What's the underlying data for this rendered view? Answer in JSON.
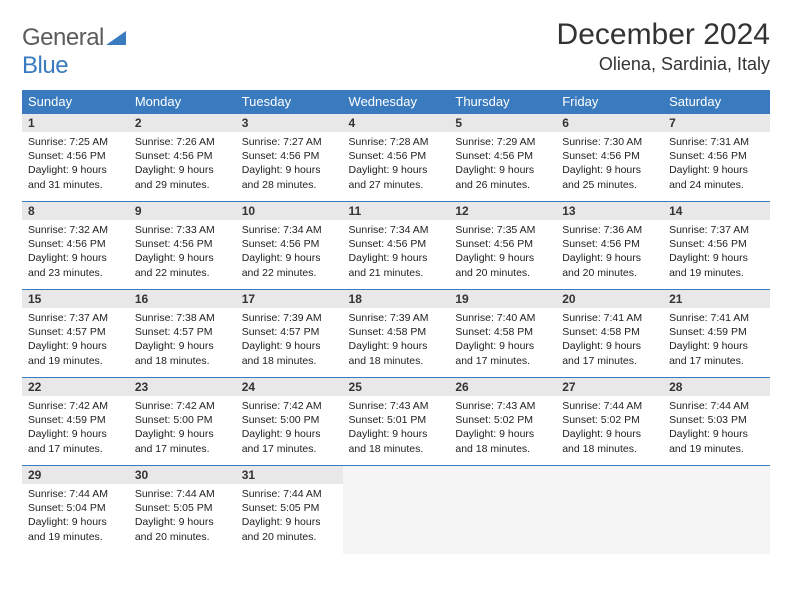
{
  "logo": {
    "general": "General",
    "blue": "Blue"
  },
  "title": "December 2024",
  "location": "Oliena, Sardinia, Italy",
  "colors": {
    "header_bg": "#3a7bbf",
    "header_text": "#ffffff",
    "daynum_bg": "#e8e8e8",
    "row_border": "#3a7bbf",
    "logo_gray": "#5b5b5b",
    "logo_blue": "#3a7bbf",
    "text": "#222222",
    "page_bg": "#ffffff"
  },
  "weekdays": [
    "Sunday",
    "Monday",
    "Tuesday",
    "Wednesday",
    "Thursday",
    "Friday",
    "Saturday"
  ],
  "days": [
    {
      "n": 1,
      "sr": "7:25 AM",
      "ss": "4:56 PM",
      "dl": "9 hours and 31 minutes."
    },
    {
      "n": 2,
      "sr": "7:26 AM",
      "ss": "4:56 PM",
      "dl": "9 hours and 29 minutes."
    },
    {
      "n": 3,
      "sr": "7:27 AM",
      "ss": "4:56 PM",
      "dl": "9 hours and 28 minutes."
    },
    {
      "n": 4,
      "sr": "7:28 AM",
      "ss": "4:56 PM",
      "dl": "9 hours and 27 minutes."
    },
    {
      "n": 5,
      "sr": "7:29 AM",
      "ss": "4:56 PM",
      "dl": "9 hours and 26 minutes."
    },
    {
      "n": 6,
      "sr": "7:30 AM",
      "ss": "4:56 PM",
      "dl": "9 hours and 25 minutes."
    },
    {
      "n": 7,
      "sr": "7:31 AM",
      "ss": "4:56 PM",
      "dl": "9 hours and 24 minutes."
    },
    {
      "n": 8,
      "sr": "7:32 AM",
      "ss": "4:56 PM",
      "dl": "9 hours and 23 minutes."
    },
    {
      "n": 9,
      "sr": "7:33 AM",
      "ss": "4:56 PM",
      "dl": "9 hours and 22 minutes."
    },
    {
      "n": 10,
      "sr": "7:34 AM",
      "ss": "4:56 PM",
      "dl": "9 hours and 22 minutes."
    },
    {
      "n": 11,
      "sr": "7:34 AM",
      "ss": "4:56 PM",
      "dl": "9 hours and 21 minutes."
    },
    {
      "n": 12,
      "sr": "7:35 AM",
      "ss": "4:56 PM",
      "dl": "9 hours and 20 minutes."
    },
    {
      "n": 13,
      "sr": "7:36 AM",
      "ss": "4:56 PM",
      "dl": "9 hours and 20 minutes."
    },
    {
      "n": 14,
      "sr": "7:37 AM",
      "ss": "4:56 PM",
      "dl": "9 hours and 19 minutes."
    },
    {
      "n": 15,
      "sr": "7:37 AM",
      "ss": "4:57 PM",
      "dl": "9 hours and 19 minutes."
    },
    {
      "n": 16,
      "sr": "7:38 AM",
      "ss": "4:57 PM",
      "dl": "9 hours and 18 minutes."
    },
    {
      "n": 17,
      "sr": "7:39 AM",
      "ss": "4:57 PM",
      "dl": "9 hours and 18 minutes."
    },
    {
      "n": 18,
      "sr": "7:39 AM",
      "ss": "4:58 PM",
      "dl": "9 hours and 18 minutes."
    },
    {
      "n": 19,
      "sr": "7:40 AM",
      "ss": "4:58 PM",
      "dl": "9 hours and 17 minutes."
    },
    {
      "n": 20,
      "sr": "7:41 AM",
      "ss": "4:58 PM",
      "dl": "9 hours and 17 minutes."
    },
    {
      "n": 21,
      "sr": "7:41 AM",
      "ss": "4:59 PM",
      "dl": "9 hours and 17 minutes."
    },
    {
      "n": 22,
      "sr": "7:42 AM",
      "ss": "4:59 PM",
      "dl": "9 hours and 17 minutes."
    },
    {
      "n": 23,
      "sr": "7:42 AM",
      "ss": "5:00 PM",
      "dl": "9 hours and 17 minutes."
    },
    {
      "n": 24,
      "sr": "7:42 AM",
      "ss": "5:00 PM",
      "dl": "9 hours and 17 minutes."
    },
    {
      "n": 25,
      "sr": "7:43 AM",
      "ss": "5:01 PM",
      "dl": "9 hours and 18 minutes."
    },
    {
      "n": 26,
      "sr": "7:43 AM",
      "ss": "5:02 PM",
      "dl": "9 hours and 18 minutes."
    },
    {
      "n": 27,
      "sr": "7:44 AM",
      "ss": "5:02 PM",
      "dl": "9 hours and 18 minutes."
    },
    {
      "n": 28,
      "sr": "7:44 AM",
      "ss": "5:03 PM",
      "dl": "9 hours and 19 minutes."
    },
    {
      "n": 29,
      "sr": "7:44 AM",
      "ss": "5:04 PM",
      "dl": "9 hours and 19 minutes."
    },
    {
      "n": 30,
      "sr": "7:44 AM",
      "ss": "5:05 PM",
      "dl": "9 hours and 20 minutes."
    },
    {
      "n": 31,
      "sr": "7:44 AM",
      "ss": "5:05 PM",
      "dl": "9 hours and 20 minutes."
    }
  ],
  "labels": {
    "sunrise": "Sunrise:",
    "sunset": "Sunset:",
    "daylight": "Daylight:"
  },
  "layout": {
    "start_weekday": 0,
    "total_cells": 35
  }
}
